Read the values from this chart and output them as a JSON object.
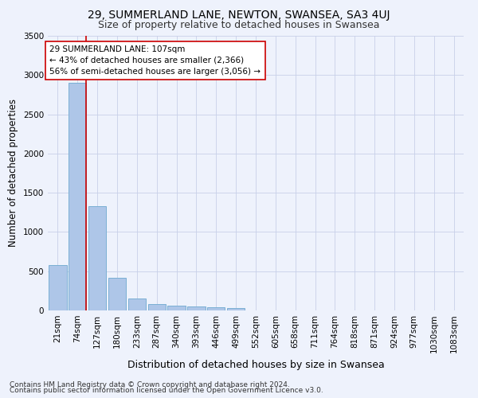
{
  "title1": "29, SUMMERLAND LANE, NEWTON, SWANSEA, SA3 4UJ",
  "title2": "Size of property relative to detached houses in Swansea",
  "xlabel": "Distribution of detached houses by size in Swansea",
  "ylabel": "Number of detached properties",
  "footer1": "Contains HM Land Registry data © Crown copyright and database right 2024.",
  "footer2": "Contains public sector information licensed under the Open Government Licence v3.0.",
  "categories": [
    "21sqm",
    "74sqm",
    "127sqm",
    "180sqm",
    "233sqm",
    "287sqm",
    "340sqm",
    "393sqm",
    "446sqm",
    "499sqm",
    "552sqm",
    "605sqm",
    "658sqm",
    "711sqm",
    "764sqm",
    "818sqm",
    "871sqm",
    "924sqm",
    "977sqm",
    "1030sqm",
    "1083sqm"
  ],
  "values": [
    575,
    2900,
    1330,
    415,
    155,
    85,
    60,
    55,
    45,
    35,
    0,
    0,
    0,
    0,
    0,
    0,
    0,
    0,
    0,
    0,
    0
  ],
  "bar_color": "#aec6e8",
  "bar_edge_color": "#7aafd4",
  "background_color": "#eef2fc",
  "grid_color": "#c8d0e8",
  "vline_color": "#cc0000",
  "annotation_text": "29 SUMMERLAND LANE: 107sqm\n← 43% of detached houses are smaller (2,366)\n56% of semi-detached houses are larger (3,056) →",
  "annotation_box_color": "#ffffff",
  "annotation_box_edge": "#cc0000",
  "ylim": [
    0,
    3500
  ],
  "yticks": [
    0,
    500,
    1000,
    1500,
    2000,
    2500,
    3000,
    3500
  ],
  "title1_fontsize": 10,
  "title2_fontsize": 9,
  "xlabel_fontsize": 9,
  "ylabel_fontsize": 8.5,
  "tick_fontsize": 7.5,
  "annotation_fontsize": 7.5,
  "footer_fontsize": 6.5
}
